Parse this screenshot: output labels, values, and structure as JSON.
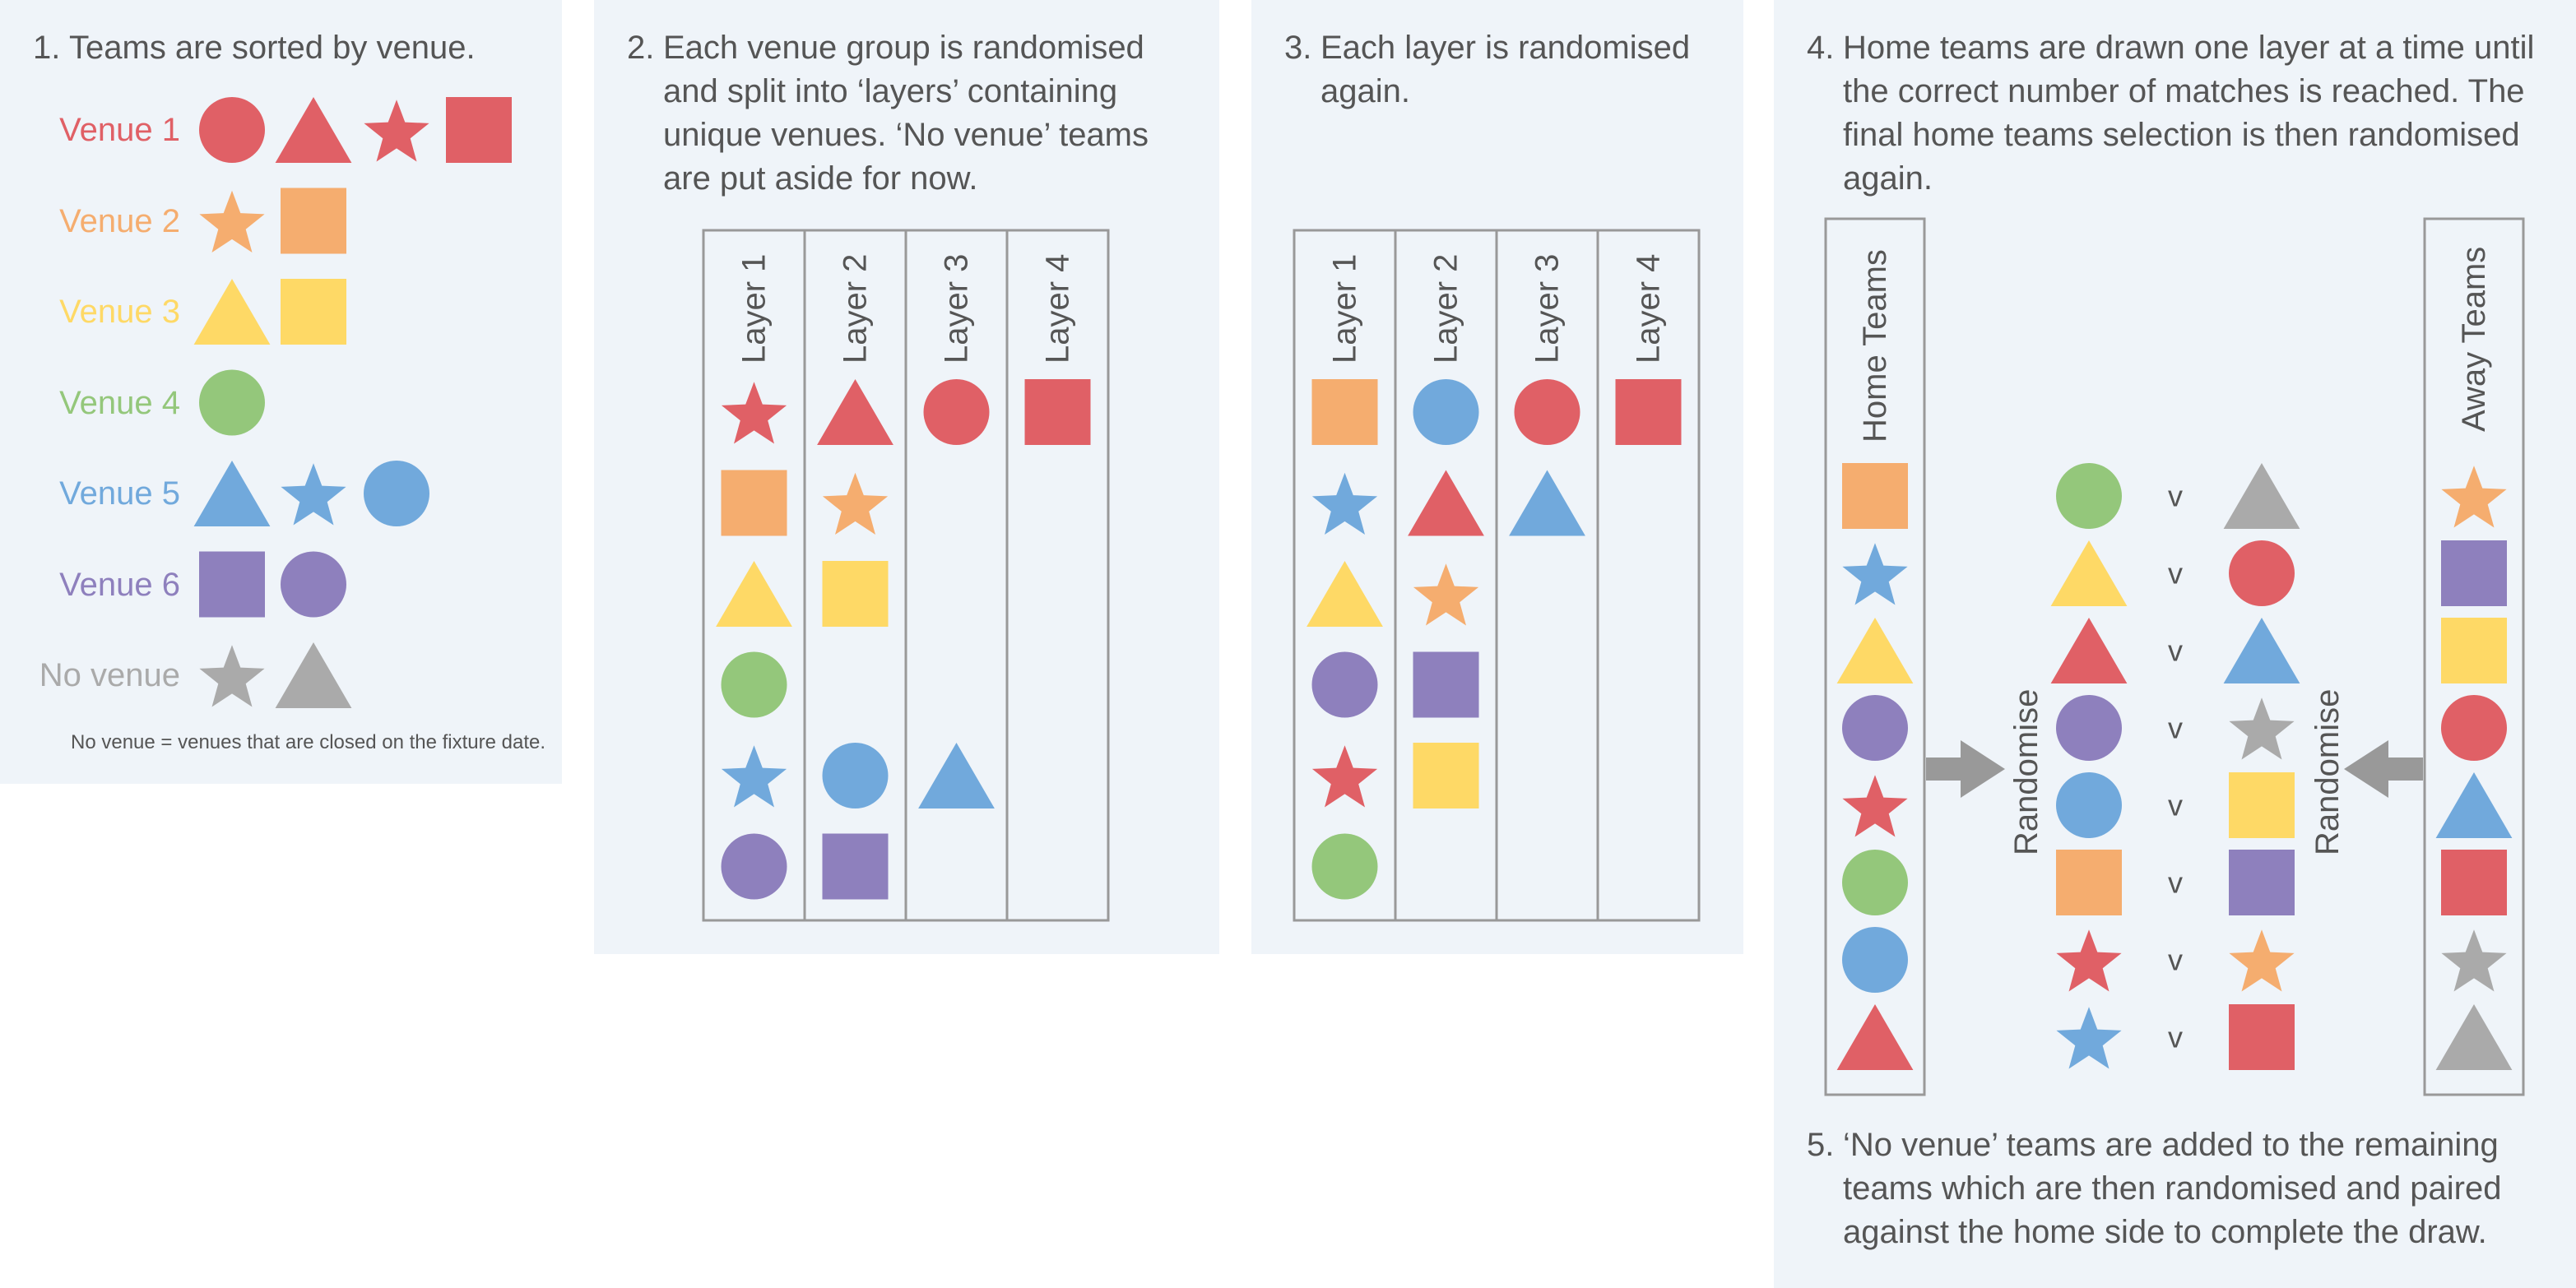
{
  "colors": {
    "red": "#e06066",
    "orange": "#f5ad6f",
    "yellow": "#fed966",
    "green": "#94c77b",
    "blue": "#71a9dc",
    "purple": "#8e80bd",
    "grey": "#aaaaaa",
    "panel_bg": "#eff4f9",
    "text": "#555555"
  },
  "step1": {
    "number": "1.",
    "text": "Teams are sorted by venue.",
    "venues": [
      {
        "label": "Venue 1",
        "color": "red",
        "shapes": [
          "circle",
          "triangle",
          "star",
          "square"
        ]
      },
      {
        "label": "Venue 2",
        "color": "orange",
        "shapes": [
          "star",
          "square"
        ]
      },
      {
        "label": "Venue 3",
        "color": "yellow",
        "shapes": [
          "triangle",
          "square"
        ]
      },
      {
        "label": "Venue 4",
        "color": "green",
        "shapes": [
          "circle"
        ]
      },
      {
        "label": "Venue 5",
        "color": "blue",
        "shapes": [
          "triangle",
          "star",
          "circle"
        ]
      },
      {
        "label": "Venue 6",
        "color": "purple",
        "shapes": [
          "square",
          "circle"
        ]
      },
      {
        "label": "No venue",
        "color": "grey",
        "shapes": [
          "star",
          "triangle"
        ]
      }
    ],
    "footnote": "No venue = venues that are closed on the fixture date."
  },
  "step2": {
    "number": "2.",
    "text": "Each venue group is randomised and split into ‘layers’ containing unique venues. ‘No venue’ teams are put aside for now.",
    "layers": [
      {
        "label": "Layer 1",
        "items": [
          [
            "star",
            "red"
          ],
          [
            "square",
            "orange"
          ],
          [
            "triangle",
            "yellow"
          ],
          [
            "circle",
            "green"
          ],
          [
            "star",
            "blue"
          ],
          [
            "circle",
            "purple"
          ]
        ]
      },
      {
        "label": "Layer 2",
        "items": [
          [
            "triangle",
            "red"
          ],
          [
            "star",
            "orange"
          ],
          [
            "square",
            "yellow"
          ],
          null,
          [
            "circle",
            "blue"
          ],
          [
            "square",
            "purple"
          ]
        ]
      },
      {
        "label": "Layer 3",
        "items": [
          [
            "circle",
            "red"
          ],
          null,
          null,
          null,
          [
            "triangle",
            "blue"
          ],
          null
        ]
      },
      {
        "label": "Layer 4",
        "items": [
          [
            "square",
            "red"
          ],
          null,
          null,
          null,
          null,
          null
        ]
      }
    ]
  },
  "step3": {
    "number": "3.",
    "text": "Each layer is randomised again.",
    "layers": [
      {
        "label": "Layer 1",
        "items": [
          [
            "square",
            "orange"
          ],
          [
            "star",
            "blue"
          ],
          [
            "triangle",
            "yellow"
          ],
          [
            "circle",
            "purple"
          ],
          [
            "star",
            "red"
          ],
          [
            "circle",
            "green"
          ]
        ]
      },
      {
        "label": "Layer 2",
        "items": [
          [
            "circle",
            "blue"
          ],
          [
            "triangle",
            "red"
          ],
          [
            "star",
            "orange"
          ],
          [
            "square",
            "purple"
          ],
          [
            "square",
            "yellow"
          ],
          null
        ]
      },
      {
        "label": "Layer 3",
        "items": [
          [
            "circle",
            "red"
          ],
          [
            "triangle",
            "blue"
          ],
          null,
          null,
          null,
          null
        ]
      },
      {
        "label": "Layer 4",
        "items": [
          [
            "square",
            "red"
          ],
          null,
          null,
          null,
          null,
          null
        ]
      }
    ]
  },
  "step4": {
    "number": "4.",
    "text": "Home teams are drawn one layer at a time until the correct number of matches is reached. The final home teams selection is then randomised again.",
    "home_label": "Home Teams",
    "away_label": "Away Teams",
    "randomise_label": "Randomise",
    "versus": "v",
    "home_teams": [
      [
        "square",
        "orange"
      ],
      [
        "star",
        "blue"
      ],
      [
        "triangle",
        "yellow"
      ],
      [
        "circle",
        "purple"
      ],
      [
        "star",
        "red"
      ],
      [
        "circle",
        "green"
      ],
      [
        "circle",
        "blue"
      ],
      [
        "triangle",
        "red"
      ]
    ],
    "away_teams": [
      [
        "star",
        "orange"
      ],
      [
        "square",
        "purple"
      ],
      [
        "square",
        "yellow"
      ],
      [
        "circle",
        "red"
      ],
      [
        "triangle",
        "blue"
      ],
      [
        "square",
        "red"
      ],
      [
        "star",
        "grey"
      ],
      [
        "triangle",
        "grey"
      ]
    ],
    "fixtures": [
      {
        "home": [
          "circle",
          "green"
        ],
        "away": [
          "triangle",
          "grey"
        ]
      },
      {
        "home": [
          "triangle",
          "yellow"
        ],
        "away": [
          "circle",
          "red"
        ]
      },
      {
        "home": [
          "triangle",
          "red"
        ],
        "away": [
          "triangle",
          "blue"
        ]
      },
      {
        "home": [
          "circle",
          "purple"
        ],
        "away": [
          "star",
          "grey"
        ]
      },
      {
        "home": [
          "circle",
          "blue"
        ],
        "away": [
          "square",
          "yellow"
        ]
      },
      {
        "home": [
          "square",
          "orange"
        ],
        "away": [
          "square",
          "purple"
        ]
      },
      {
        "home": [
          "star",
          "red"
        ],
        "away": [
          "star",
          "orange"
        ]
      },
      {
        "home": [
          "star",
          "blue"
        ],
        "away": [
          "square",
          "red"
        ]
      }
    ]
  },
  "step5": {
    "number": "5.",
    "text": "‘No venue’ teams are added to the remaining teams which are then randomised and paired against the home side to complete the draw."
  }
}
